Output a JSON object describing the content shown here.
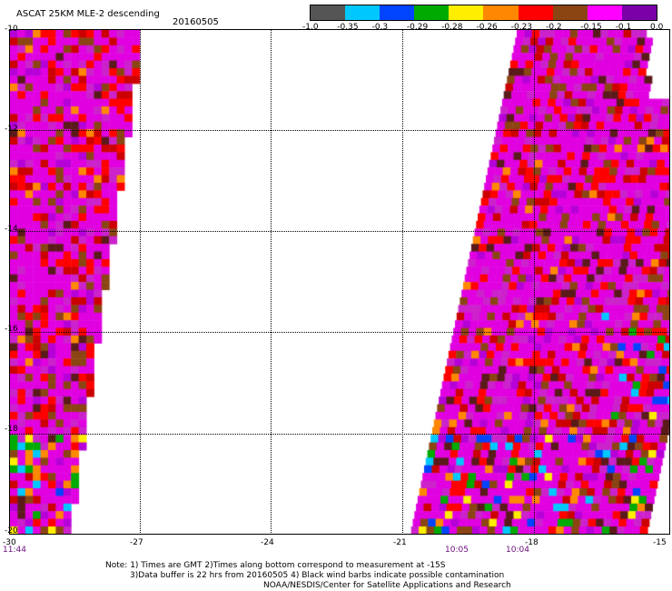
{
  "header": {
    "title": "ASCAT 25KM MLE-2 descending",
    "date": "20160505"
  },
  "colorbar": {
    "colors": [
      "#555555",
      "#00c8ff",
      "#0044ff",
      "#00aa00",
      "#ffee00",
      "#ff8800",
      "#ff0000",
      "#8b4513",
      "#ff00ff",
      "#7a00a8"
    ],
    "labels": [
      "-1.0",
      "-0.35",
      "-0.3",
      "-0.29",
      "-0.28",
      "-0.26",
      "-0.23",
      "-0.2",
      "-0.15",
      "-0.1",
      "0.0"
    ]
  },
  "map": {
    "lon_ticks": [
      "-30",
      "-27",
      "-24",
      "-21",
      "-18",
      "-15"
    ],
    "lat_ticks": [
      "-10",
      "-12",
      "-14",
      "-16",
      "-18",
      "-20"
    ],
    "times": [
      "11:44",
      "10:05",
      "10:04"
    ],
    "palette": [
      "#e000e0",
      "#cc22cc",
      "#b600d8",
      "#ff0000",
      "#cc0000",
      "#8b4513",
      "#5a1a1a",
      "#ff8800",
      "#ffee00",
      "#00aa00",
      "#00c8ff",
      "#0044ff"
    ]
  },
  "notes": {
    "line1": "Note: 1) Times are GMT 2)Times along bottom correspond to measurement at -15S",
    "line2": "3)Data buffer is 22 hrs from 20160505 4) Black wind barbs indicate possible contamination",
    "line3": "NOAA/NESDIS/Center for Satellite Applications and Research"
  }
}
